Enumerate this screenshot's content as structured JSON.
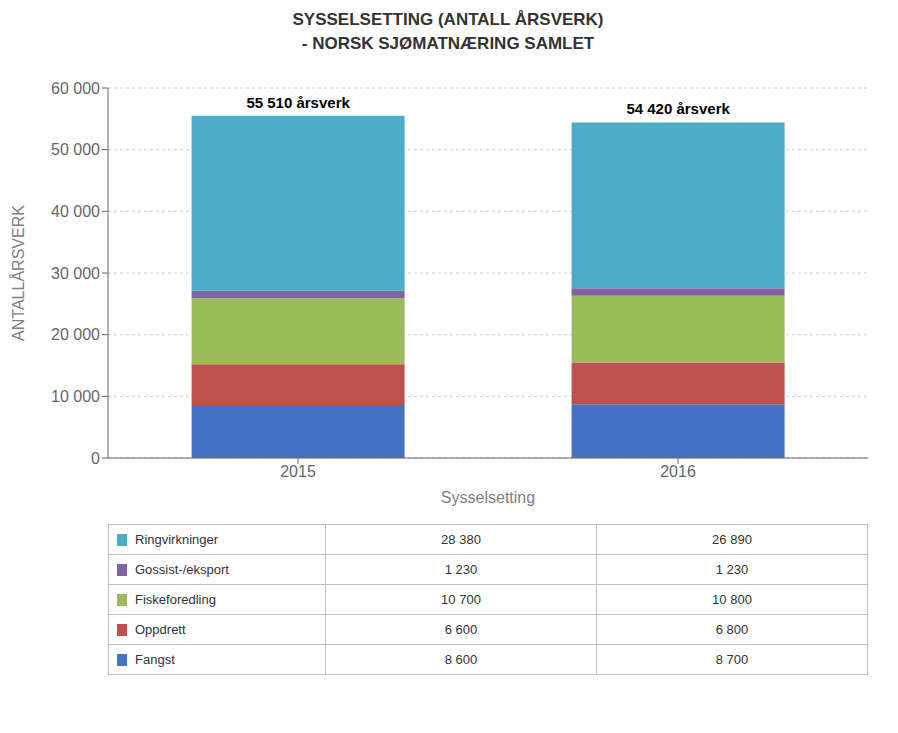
{
  "chart_data": {
    "type": "bar",
    "title": "SYSSELSETTING (ANTALL ÅRSVERK)\n - NORSK SJØMATNÆRING SAMLET",
    "xlabel": "Sysselsetting",
    "ylabel": "ANTALLÅRSVERK",
    "categories": [
      "2015",
      "2016"
    ],
    "stacked": true,
    "grid": true,
    "series": [
      {
        "name": "Fangst",
        "color": "#4472C4",
        "values": [
          8600,
          8700
        ],
        "value_labels": [
          "8 600",
          "8 700"
        ]
      },
      {
        "name": "Oppdrett",
        "color": "#C0504D",
        "values": [
          6600,
          6800
        ],
        "value_labels": [
          "6 600",
          "6 800"
        ]
      },
      {
        "name": "Fiskeforedling",
        "color": "#9BBB59",
        "values": [
          10700,
          10800
        ],
        "value_labels": [
          "10 700",
          "10 800"
        ]
      },
      {
        "name": "Gossist-/eksport",
        "color": "#8064A2",
        "values": [
          1230,
          1230
        ],
        "value_labels": [
          "1 230",
          "1 230"
        ]
      },
      {
        "name": "Ringvirkninger",
        "color": "#4BACC6",
        "values": [
          28380,
          26890
        ],
        "value_labels": [
          "28 380",
          "26 890"
        ]
      }
    ],
    "annotations": [
      "55 510 årsverk",
      "54 420 årsverk"
    ],
    "ylim": [
      0,
      60000
    ],
    "yticks": [
      {
        "value": 0,
        "label": "0"
      },
      {
        "value": 10000,
        "label": "10 000"
      },
      {
        "value": 20000,
        "label": "20 000"
      },
      {
        "value": 30000,
        "label": "30 000"
      },
      {
        "value": 40000,
        "label": "40 000"
      },
      {
        "value": 50000,
        "label": "50 000"
      },
      {
        "value": 60000,
        "label": "60 000"
      }
    ]
  }
}
